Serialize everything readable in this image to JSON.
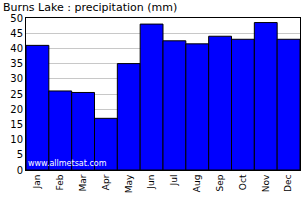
{
  "chart_data": {
    "type": "bar",
    "title": "Burns Lake : precipitation (mm)",
    "categories": [
      "Jan",
      "Feb",
      "Mar",
      "Apr",
      "May",
      "Jun",
      "Jul",
      "Aug",
      "Sep",
      "Oct",
      "Nov",
      "Dec"
    ],
    "values": [
      41,
      26,
      25.5,
      17,
      35,
      48,
      42.5,
      41.5,
      44,
      43,
      48.5,
      43
    ],
    "color": "#0000ff",
    "ylim": [
      0,
      50
    ],
    "yticks": [
      0,
      5,
      10,
      15,
      20,
      25,
      30,
      35,
      40,
      45,
      50
    ],
    "grid": true,
    "annotations": [
      "www.allmetsat.com"
    ]
  }
}
